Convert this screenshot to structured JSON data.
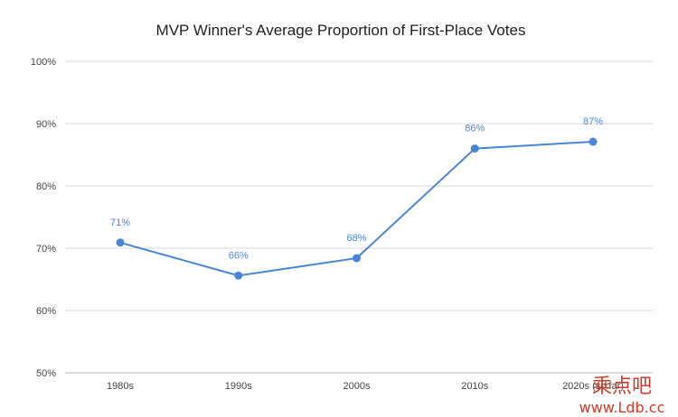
{
  "chart_data": {
    "type": "line",
    "title": "MVP Winner's Average Proportion of First-Place Votes",
    "xlabel": "",
    "ylabel": "",
    "categories": [
      "1980s",
      "1990s",
      "2000s",
      "2010s",
      "2020s (so far)"
    ],
    "series": [
      {
        "values": [
          0.709,
          0.656,
          0.684,
          0.86,
          0.871
        ],
        "data_labels": [
          "71%",
          "66%",
          "68%",
          "86%",
          "87%"
        ],
        "color": "#4a86d8"
      }
    ],
    "ylim": [
      0.5,
      1.0
    ],
    "yticks": [
      {
        "value": 0.5,
        "label": "50%"
      },
      {
        "value": 0.6,
        "label": "60%"
      },
      {
        "value": 0.7,
        "label": "70%"
      },
      {
        "value": 0.8,
        "label": "80%"
      },
      {
        "value": 0.9,
        "label": "90%"
      },
      {
        "value": 1.0,
        "label": "100%"
      }
    ],
    "grid": true,
    "legend": "none"
  },
  "watermark": {
    "cjk_text": "乘点吧",
    "url_text": "www.Ldb.cc",
    "color": "#d03a2a"
  },
  "colors": {
    "gridline": "#d9d9d9",
    "axis_text": "#444444",
    "title": "#222222"
  }
}
